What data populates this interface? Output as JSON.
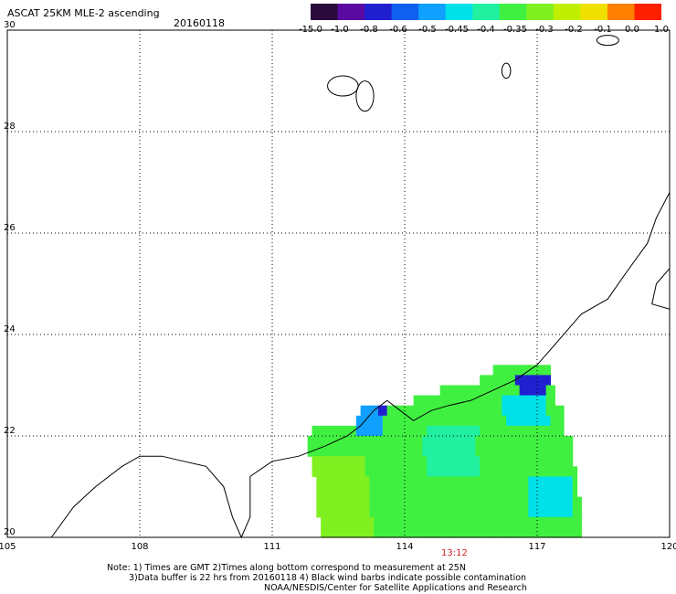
{
  "header": {
    "title": "ASCAT 25KM MLE-2 ascending",
    "date": "20160118"
  },
  "colorbar": {
    "labels": [
      "-15.0",
      "-1.0",
      "-0.8",
      "-0.6",
      "-0.5",
      "-0.45",
      "-0.4",
      "-0.35",
      "-0.3",
      "-0.2",
      "-0.1",
      "0.0",
      "1.0"
    ],
    "colors": [
      "#2a0a3a",
      "#5a0aa0",
      "#2020d0",
      "#1060f0",
      "#10a0ff",
      "#00e0e8",
      "#20f0a0",
      "#40f040",
      "#80f020",
      "#c0f000",
      "#f0e000",
      "#ff8000",
      "#ff2000"
    ]
  },
  "chart_data": {
    "type": "heatmap",
    "title": "ASCAT 25KM MLE-2 ascending",
    "subtitle": "20160118",
    "xlabel": "",
    "ylabel": "",
    "xlim": [
      105,
      120
    ],
    "ylim": [
      20,
      30
    ],
    "x_ticks": [
      105,
      108,
      111,
      114,
      117,
      120
    ],
    "y_ticks": [
      20,
      22,
      24,
      26,
      28,
      30
    ],
    "x_tick_labels": [
      "105",
      "108",
      "111",
      "114",
      "117",
      "120"
    ],
    "y_tick_labels": [
      "20",
      "22",
      "24",
      "26",
      "28",
      "30"
    ],
    "grid": true,
    "swath_extent": {
      "rows": [
        {
          "lat": 23.3,
          "lon_min": 116.0,
          "lon_max": 117.3
        },
        {
          "lat": 23.1,
          "lon_min": 115.7,
          "lon_max": 117.3
        },
        {
          "lat": 22.9,
          "lon_min": 114.8,
          "lon_max": 117.4
        },
        {
          "lat": 22.7,
          "lon_min": 114.2,
          "lon_max": 117.4
        },
        {
          "lat": 22.5,
          "lon_min": 113.0,
          "lon_max": 117.6
        },
        {
          "lat": 22.3,
          "lon_min": 112.9,
          "lon_max": 117.6
        },
        {
          "lat": 22.1,
          "lon_min": 111.9,
          "lon_max": 117.6
        },
        {
          "lat": 21.9,
          "lon_min": 111.8,
          "lon_max": 117.8
        },
        {
          "lat": 21.7,
          "lon_min": 111.8,
          "lon_max": 117.8
        },
        {
          "lat": 21.5,
          "lon_min": 111.9,
          "lon_max": 117.8
        },
        {
          "lat": 21.3,
          "lon_min": 111.9,
          "lon_max": 117.9
        },
        {
          "lat": 21.1,
          "lon_min": 112.0,
          "lon_max": 117.9
        },
        {
          "lat": 20.9,
          "lon_min": 112.0,
          "lon_max": 117.9
        },
        {
          "lat": 20.7,
          "lon_min": 112.0,
          "lon_max": 118.0
        },
        {
          "lat": 20.5,
          "lon_min": 112.0,
          "lon_max": 118.0
        },
        {
          "lat": 20.3,
          "lon_min": 112.1,
          "lon_max": 118.0
        },
        {
          "lat": 20.1,
          "lon_min": 112.1,
          "lon_max": 118.0
        }
      ],
      "dominant_value": "-0.35",
      "patches": [
        {
          "lon": [
            116.6,
            117.3
          ],
          "lat": [
            22.8,
            23.2
          ],
          "value": "-0.8"
        },
        {
          "lon": [
            116.3,
            117.3
          ],
          "lat": [
            22.3,
            22.8
          ],
          "value": "-0.45"
        },
        {
          "lon": [
            113.0,
            113.6
          ],
          "lat": [
            22.1,
            22.5
          ],
          "value": "-0.5"
        },
        {
          "lon": [
            113.4,
            113.6
          ],
          "lat": [
            22.4,
            22.6
          ],
          "value": "-0.8"
        },
        {
          "lon": [
            114.5,
            115.7
          ],
          "lat": [
            21.3,
            22.1
          ],
          "value": "-0.4"
        },
        {
          "lon": [
            116.9,
            117.9
          ],
          "lat": [
            20.4,
            21.1
          ],
          "value": "-0.45"
        },
        {
          "lon": [
            112.0,
            113.2
          ],
          "lat": [
            20.1,
            21.5
          ],
          "value": "-0.3"
        }
      ]
    }
  },
  "pass_time": "13:12",
  "notes": {
    "line1": "Note: 1) Times are GMT 2)Times along bottom correspond to measurement at 25N",
    "line2": "3)Data buffer is 22 hrs from 20160118 4) Black wind barbs indicate possible contamination",
    "line3": "NOAA/NESDIS/Center for Satellite Applications and Research"
  }
}
